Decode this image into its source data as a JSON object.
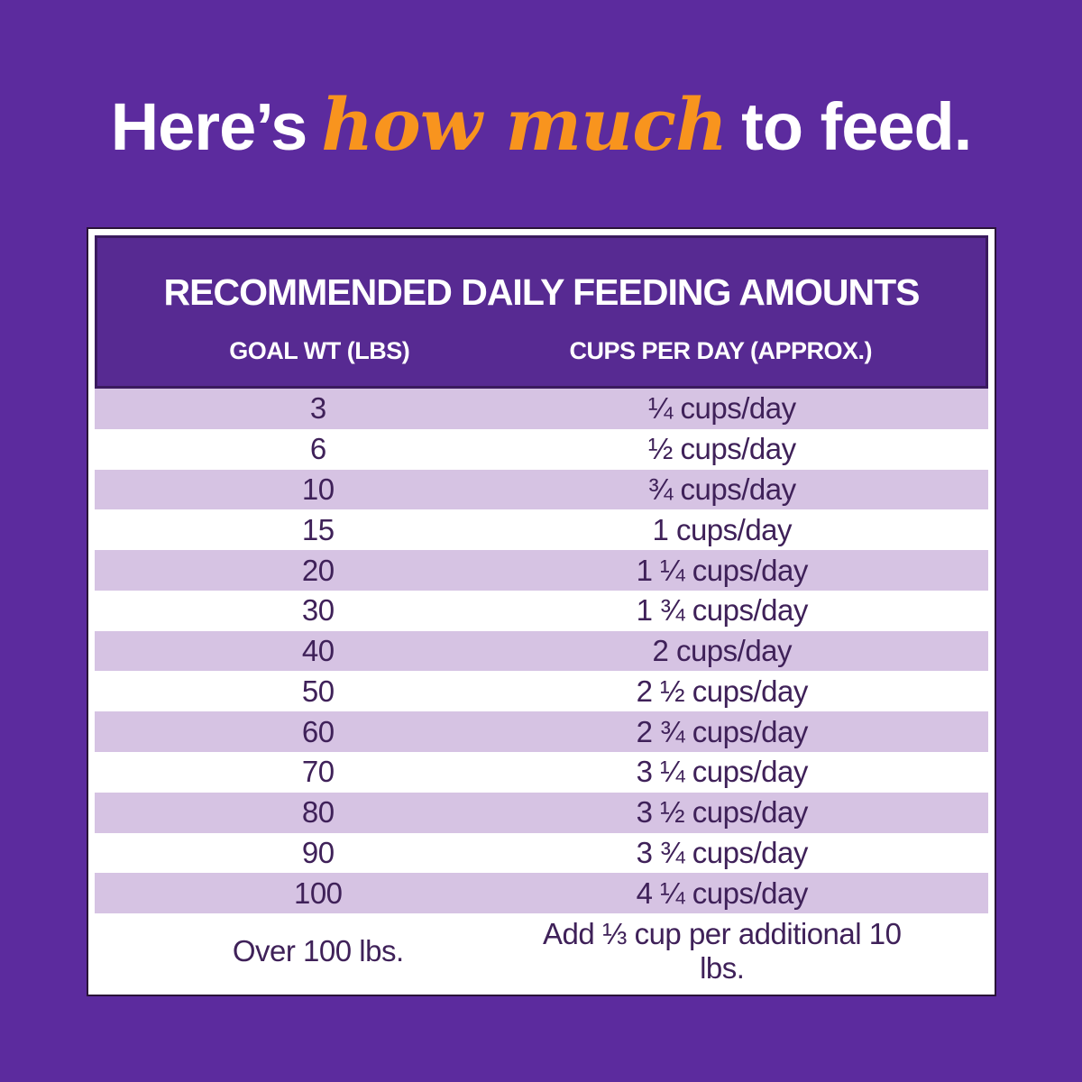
{
  "colors": {
    "background": "#5C2B9E",
    "header_purple": "#572A92",
    "header_outline": "#3A1A5E",
    "card_border": "#2A1438",
    "row_alt": "#D6C3E3",
    "row_plain": "#FFFFFF",
    "text_dark": "#3F2159",
    "accent_orange": "#F8941E",
    "white": "#FFFFFF"
  },
  "heading": {
    "prefix": "Here’s",
    "highlight": "how much",
    "suffix": "to feed."
  },
  "chart_data": {
    "type": "table",
    "title": "RECOMMENDED DAILY FEEDING AMOUNTS",
    "columns": [
      "GOAL WT (LBS)",
      "CUPS PER DAY (APPROX.)"
    ],
    "rows": [
      [
        "3",
        "¼ cups/day"
      ],
      [
        "6",
        "½ cups/day"
      ],
      [
        "10",
        "¾ cups/day"
      ],
      [
        "15",
        "1 cups/day"
      ],
      [
        "20",
        "1 ¼ cups/day"
      ],
      [
        "30",
        "1 ¾ cups/day"
      ],
      [
        "40",
        "2 cups/day"
      ],
      [
        "50",
        "2 ½ cups/day"
      ],
      [
        "60",
        "2 ¾ cups/day"
      ],
      [
        "70",
        "3 ¼ cups/day"
      ],
      [
        "80",
        "3 ½ cups/day"
      ],
      [
        "90",
        "3 ¾ cups/day"
      ],
      [
        "100",
        "4 ¼ cups/day"
      ],
      [
        "Over 100 lbs.",
        "Add ⅓ cup per additional 10 lbs."
      ]
    ]
  }
}
